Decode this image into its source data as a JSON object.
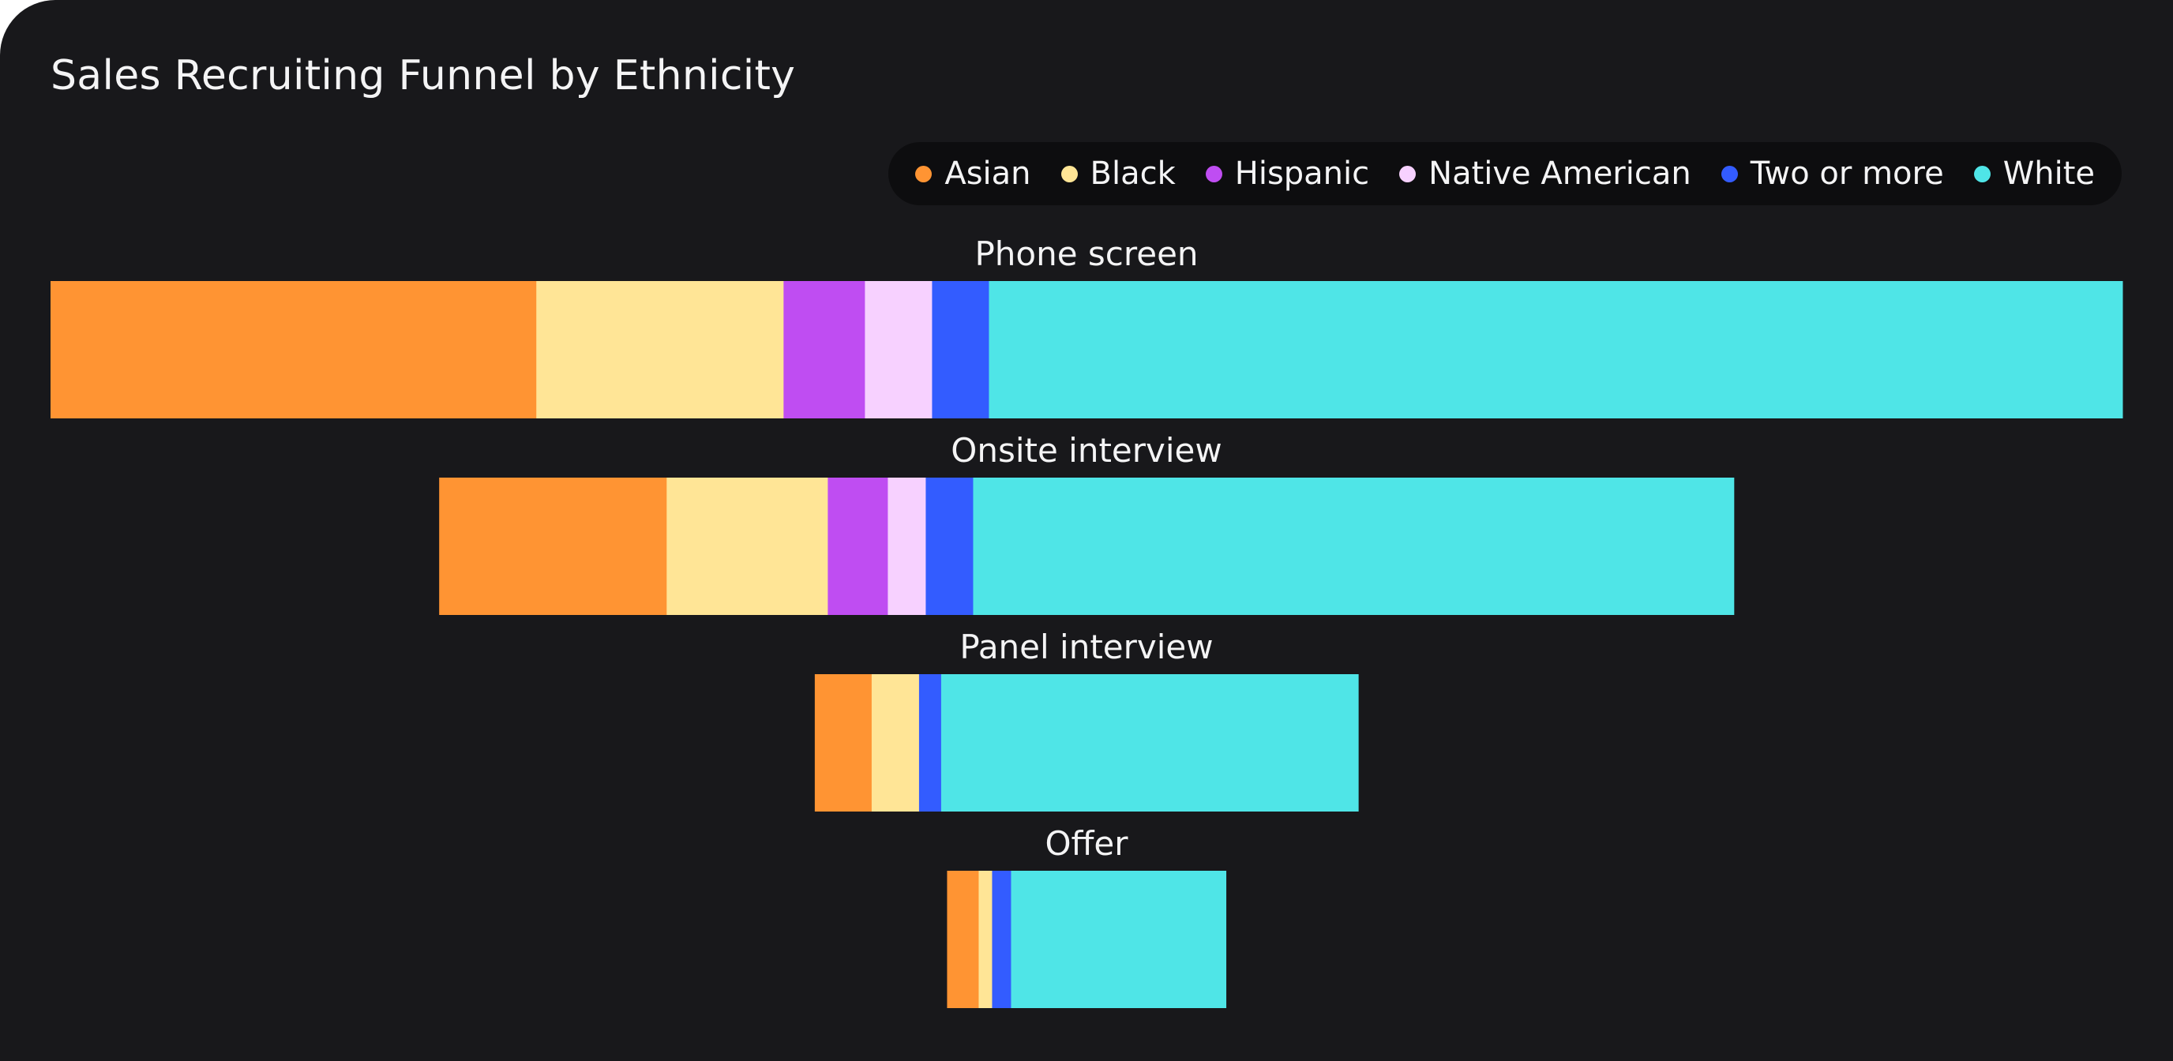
{
  "chart_data": {
    "type": "bar",
    "title": "Sales Recruiting Funnel by Ethnicity",
    "legend_position": "top-right",
    "grid": false,
    "categories": [
      "Phone screen",
      "Onsite interview",
      "Panel interview",
      "Offer"
    ],
    "series": [
      {
        "name": "Asian",
        "color": "#ff9433",
        "values": [
          615,
          288,
          72,
          40
        ]
      },
      {
        "name": "Black",
        "color": "#ffe596",
        "values": [
          313,
          204,
          60,
          17
        ]
      },
      {
        "name": "Hispanic",
        "color": "#bf4df2",
        "values": [
          103,
          76,
          0,
          0
        ]
      },
      {
        "name": "Native American",
        "color": "#f7d1ff",
        "values": [
          85,
          48,
          0,
          0
        ]
      },
      {
        "name": "Two or more",
        "color": "#335cff",
        "values": [
          72,
          60,
          28,
          24
        ]
      },
      {
        "name": "White",
        "color": "#4fe5e7",
        "values": [
          1435,
          963,
          528,
          272
        ]
      }
    ]
  }
}
